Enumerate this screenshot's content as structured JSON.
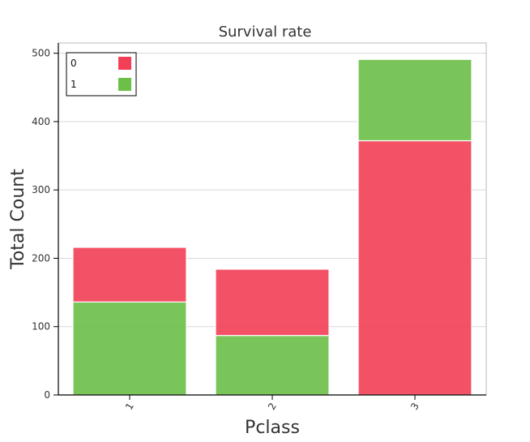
{
  "chart_data": {
    "type": "bar",
    "stacked": true,
    "title": "Survival rate",
    "xlabel": "Pclass",
    "ylabel": "Total Count",
    "categories": [
      "1",
      "2",
      "3"
    ],
    "series": [
      {
        "name": "1",
        "color": "#6cbf47",
        "values": [
          136,
          87,
          119
        ]
      },
      {
        "name": "0",
        "color": "#f23f55",
        "values": [
          80,
          97,
          372
        ]
      }
    ],
    "stack_order": {
      "1": [
        "1",
        "0"
      ],
      "2": [
        "1",
        "0"
      ],
      "3": [
        "0",
        "1"
      ]
    },
    "ylim": [
      0,
      515
    ],
    "yticks": [
      0,
      100,
      200,
      300,
      400,
      500
    ],
    "grid": true,
    "legend": {
      "placement": "top-left",
      "entries": [
        {
          "label": "0",
          "color": "#f23f55"
        },
        {
          "label": "1",
          "color": "#6cbf47"
        }
      ]
    }
  }
}
